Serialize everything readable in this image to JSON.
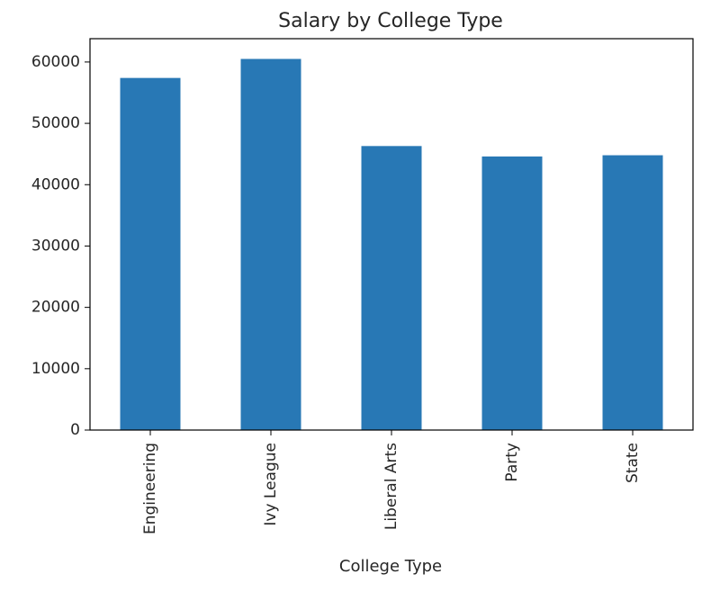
{
  "chart_data": {
    "type": "bar",
    "title": "Salary by College Type",
    "xlabel": "College Type",
    "ylabel": "",
    "categories": [
      "Engineering",
      "Ivy League",
      "Liberal Arts",
      "Party",
      "State"
    ],
    "values": [
      57400,
      60500,
      46300,
      44600,
      44800
    ],
    "ylim": [
      0,
      63800
    ],
    "yticks": [
      0,
      10000,
      20000,
      30000,
      40000,
      50000,
      60000
    ],
    "ytick_labels": [
      "0",
      "10000",
      "20000",
      "30000",
      "40000",
      "50000",
      "60000"
    ],
    "bar_color": "#2878b5",
    "grid": false,
    "legend": "none"
  }
}
